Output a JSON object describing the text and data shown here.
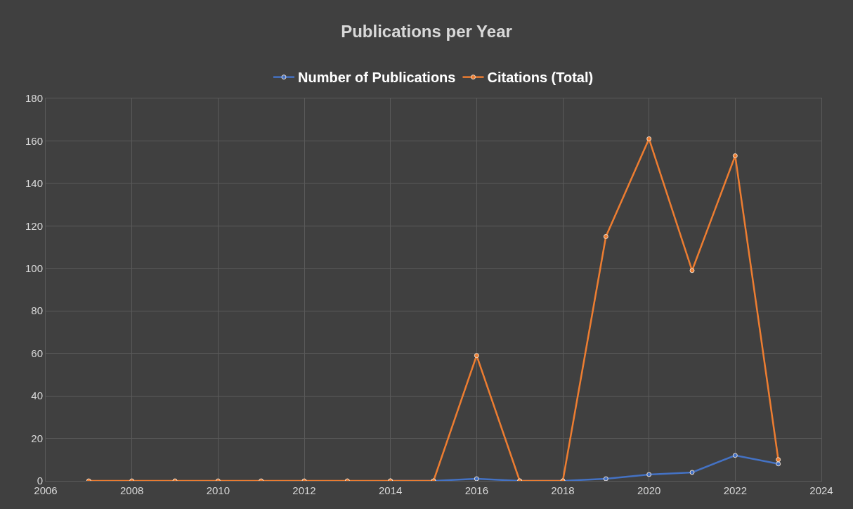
{
  "chart_data": {
    "type": "line",
    "title": "Publications per Year",
    "x": [
      2007,
      2008,
      2009,
      2010,
      2011,
      2012,
      2013,
      2014,
      2015,
      2016,
      2017,
      2018,
      2019,
      2020,
      2021,
      2022,
      2023
    ],
    "series": [
      {
        "name": "Number of Publications",
        "color": "#4472c4",
        "values": [
          null,
          null,
          null,
          null,
          null,
          null,
          null,
          0,
          0,
          1,
          0,
          0,
          1,
          3,
          4,
          12,
          8
        ]
      },
      {
        "name": "Citations (Total)",
        "color": "#ed7d31",
        "values": [
          0,
          0,
          0,
          0,
          0,
          0,
          0,
          0,
          0,
          59,
          0,
          0,
          115,
          161,
          99,
          153,
          10
        ]
      }
    ],
    "xlim": [
      2006,
      2024
    ],
    "xticks": [
      2006,
      2008,
      2010,
      2012,
      2014,
      2016,
      2018,
      2020,
      2022,
      2024
    ],
    "ylim": [
      0,
      180
    ],
    "yticks": [
      0,
      20,
      40,
      60,
      80,
      100,
      120,
      140,
      160,
      180
    ],
    "grid": true,
    "legend": "top",
    "marker": "circle",
    "line_style": "solid"
  }
}
